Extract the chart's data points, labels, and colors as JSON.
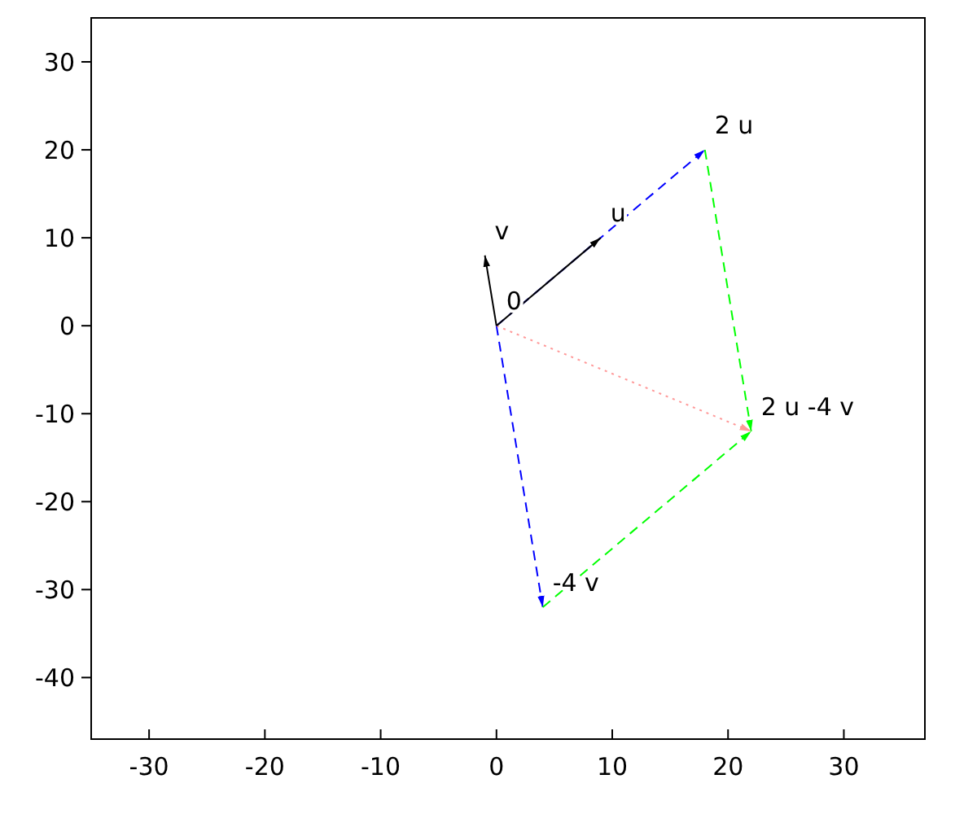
{
  "chart_data": {
    "type": "line",
    "xlim": [
      -35,
      37
    ],
    "ylim": [
      -47,
      35
    ],
    "xticks": [
      -30,
      -20,
      -10,
      0,
      10,
      20,
      30
    ],
    "yticks": [
      -40,
      -30,
      -20,
      -10,
      0,
      10,
      20,
      30
    ],
    "grid": false,
    "marker": "none",
    "series": [
      {
        "color": "#0000ff",
        "line_style": "dashed",
        "x": [
          0,
          18
        ],
        "values": [
          0,
          20
        ]
      },
      {
        "color": "#0000ff",
        "line_style": "dashed",
        "x": [
          0,
          4
        ],
        "values": [
          0,
          -32
        ]
      },
      {
        "color": "#00ff00",
        "line_style": "dashed",
        "x": [
          18,
          22
        ],
        "values": [
          20,
          -12
        ]
      },
      {
        "color": "#00ff00",
        "line_style": "dashed",
        "x": [
          4,
          22
        ],
        "values": [
          -32,
          -12
        ]
      },
      {
        "color": "#ff9999",
        "line_style": "dotted",
        "x": [
          0,
          22
        ],
        "values": [
          0,
          -12
        ]
      },
      {
        "color": "#000000",
        "line_style": "solid",
        "x": [
          0,
          9
        ],
        "values": [
          0,
          10
        ]
      },
      {
        "color": "#000000",
        "line_style": "solid",
        "x": [
          0,
          -1
        ],
        "values": [
          0,
          8
        ]
      }
    ],
    "annotations": [
      {
        "text": "0",
        "x": 0,
        "y": 0
      },
      {
        "text": "u",
        "x": 9,
        "y": 10
      },
      {
        "text": "v",
        "x": -1,
        "y": 8
      },
      {
        "text": "2 u",
        "x": 18,
        "y": 20
      },
      {
        "text": "-4 v",
        "x": 4,
        "y": -32
      },
      {
        "text": "2 u -4 v",
        "x": 22,
        "y": -12
      }
    ]
  }
}
